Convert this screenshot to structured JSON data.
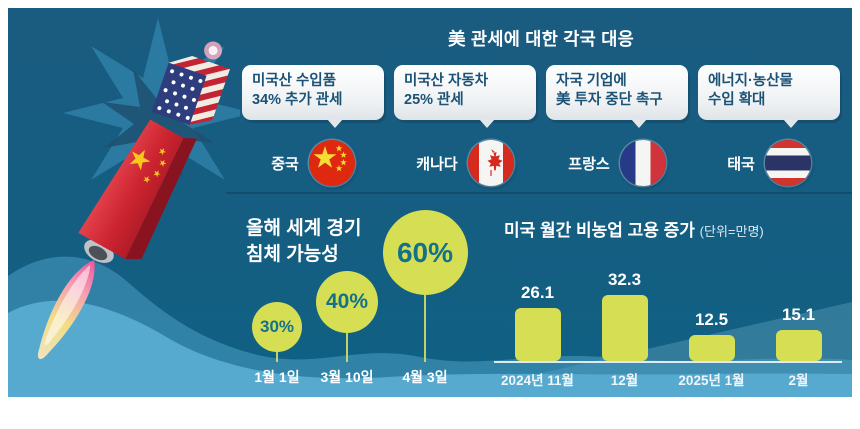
{
  "page": {
    "title": "美 관세에 대한 각국 대응"
  },
  "countries": [
    {
      "name": "중국",
      "flag": "china-flag-icon",
      "measure": "미국산 수입품\n34% 추가 관세"
    },
    {
      "name": "캐나다",
      "flag": "canada-flag-icon",
      "measure": "미국산 자동차\n25% 관세"
    },
    {
      "name": "프랑스",
      "flag": "france-flag-icon",
      "measure": "자국 기업에\n美 투자 중단 촉구"
    },
    {
      "name": "태국",
      "flag": "thailand-flag-icon",
      "measure": "에너지·농산물\n수입 확대"
    }
  ],
  "chart_data": [
    {
      "type": "bubble",
      "title": "올해 세계 경기\n침체 가능성",
      "categories": [
        "1월 1일",
        "3월 10일",
        "4월 3일"
      ],
      "values": [
        30,
        40,
        60
      ],
      "labels": [
        "30%",
        "40%",
        "60%"
      ],
      "unit": "%",
      "bubble_color": "#d6de54",
      "label_color": "#13718c"
    },
    {
      "type": "bar",
      "title": "미국 월간 비농업 고용 증가",
      "unit_label": "(단위=만명)",
      "categories": [
        "2024년 11월",
        "12월",
        "2025년 1월",
        "2월"
      ],
      "values": [
        26.1,
        32.3,
        12.5,
        15.1
      ],
      "value_labels": [
        "26.1",
        "32.3",
        "12.5",
        "15.1"
      ],
      "ylim": [
        0,
        35
      ],
      "bar_color": "#d6de54",
      "grid": false
    }
  ],
  "colors": {
    "panel_background": "#165d82",
    "accent_green": "#d6de54",
    "wave_blue": "#55a9ce",
    "speech_text": "#1b5276",
    "white_text": "#ffffff"
  },
  "illustration": {
    "parts": [
      "china-rocket-icon",
      "us-flag-cube-icon",
      "explosion-burst-icon",
      "rocket-flame-icon",
      "ocean-wave-shape"
    ]
  }
}
